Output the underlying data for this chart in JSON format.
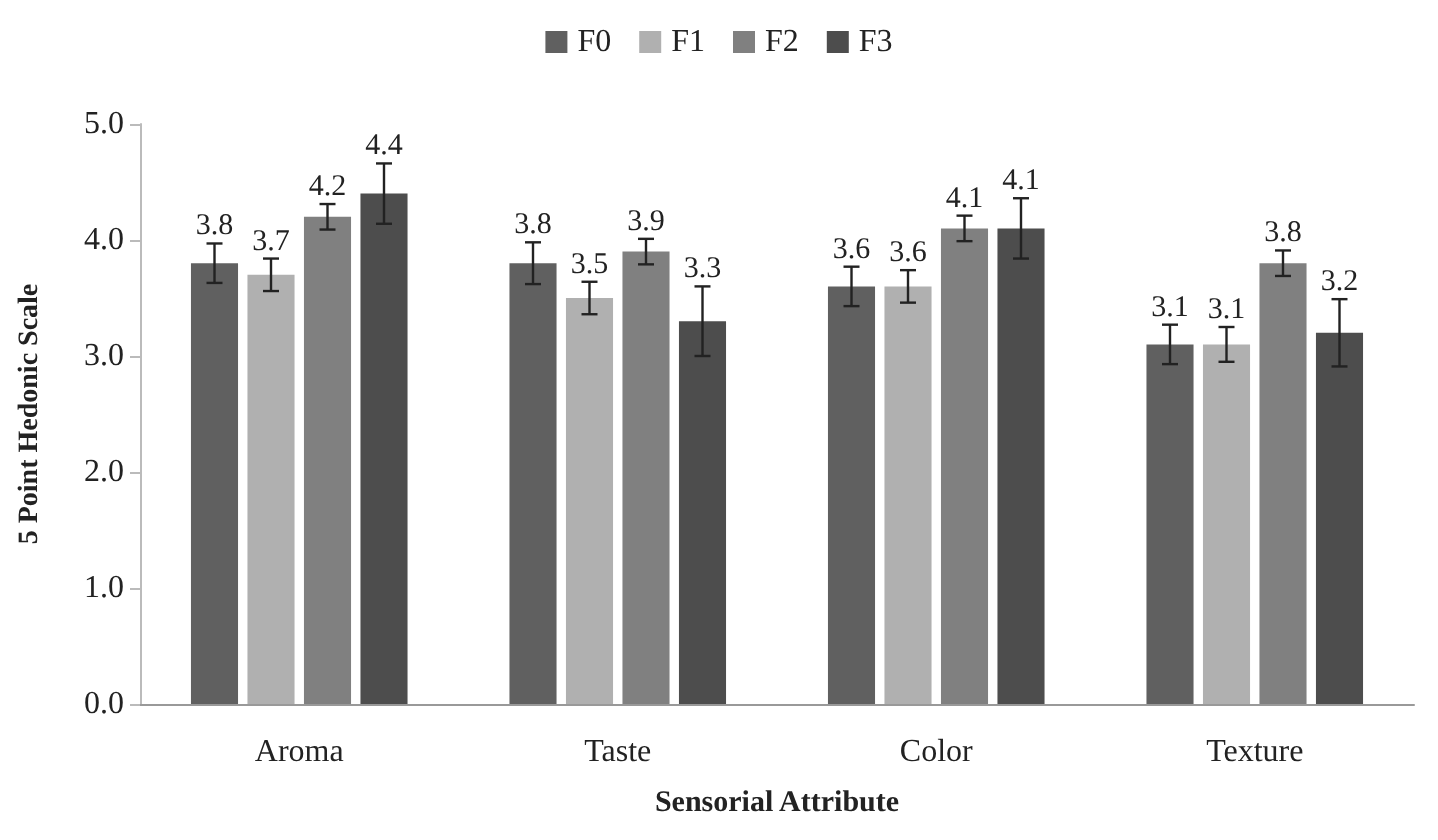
{
  "chart_data": {
    "type": "bar",
    "xlabel": "Sensorial Attribute",
    "ylabel": "5 Point Hedonic Scale",
    "categories": [
      "Aroma",
      "Taste",
      "Color",
      "Texture"
    ],
    "series": [
      {
        "name": "F0",
        "color": "#606060",
        "values": [
          3.8,
          3.8,
          3.6,
          3.1
        ],
        "errors": [
          0.17,
          0.18,
          0.17,
          0.17
        ]
      },
      {
        "name": "F1",
        "color": "#b0b0b0",
        "values": [
          3.7,
          3.5,
          3.6,
          3.1
        ],
        "errors": [
          0.14,
          0.14,
          0.14,
          0.15
        ]
      },
      {
        "name": "F2",
        "color": "#808080",
        "values": [
          4.2,
          3.9,
          4.1,
          3.8
        ],
        "errors": [
          0.11,
          0.11,
          0.11,
          0.11
        ]
      },
      {
        "name": "F3",
        "color": "#4d4d4d",
        "values": [
          4.4,
          3.3,
          4.1,
          3.2
        ],
        "errors": [
          0.26,
          0.3,
          0.26,
          0.29
        ]
      }
    ],
    "ylim": [
      0,
      5
    ],
    "yticks": [
      {
        "value": 0,
        "label": "0.0"
      },
      {
        "value": 1,
        "label": "1.0"
      },
      {
        "value": 2,
        "label": "2.0"
      },
      {
        "value": 3,
        "label": "3.0"
      },
      {
        "value": 4,
        "label": "4.0"
      },
      {
        "value": 5,
        "label": "5.0"
      }
    ],
    "grid": false,
    "legend": "top",
    "data_labels": true
  }
}
